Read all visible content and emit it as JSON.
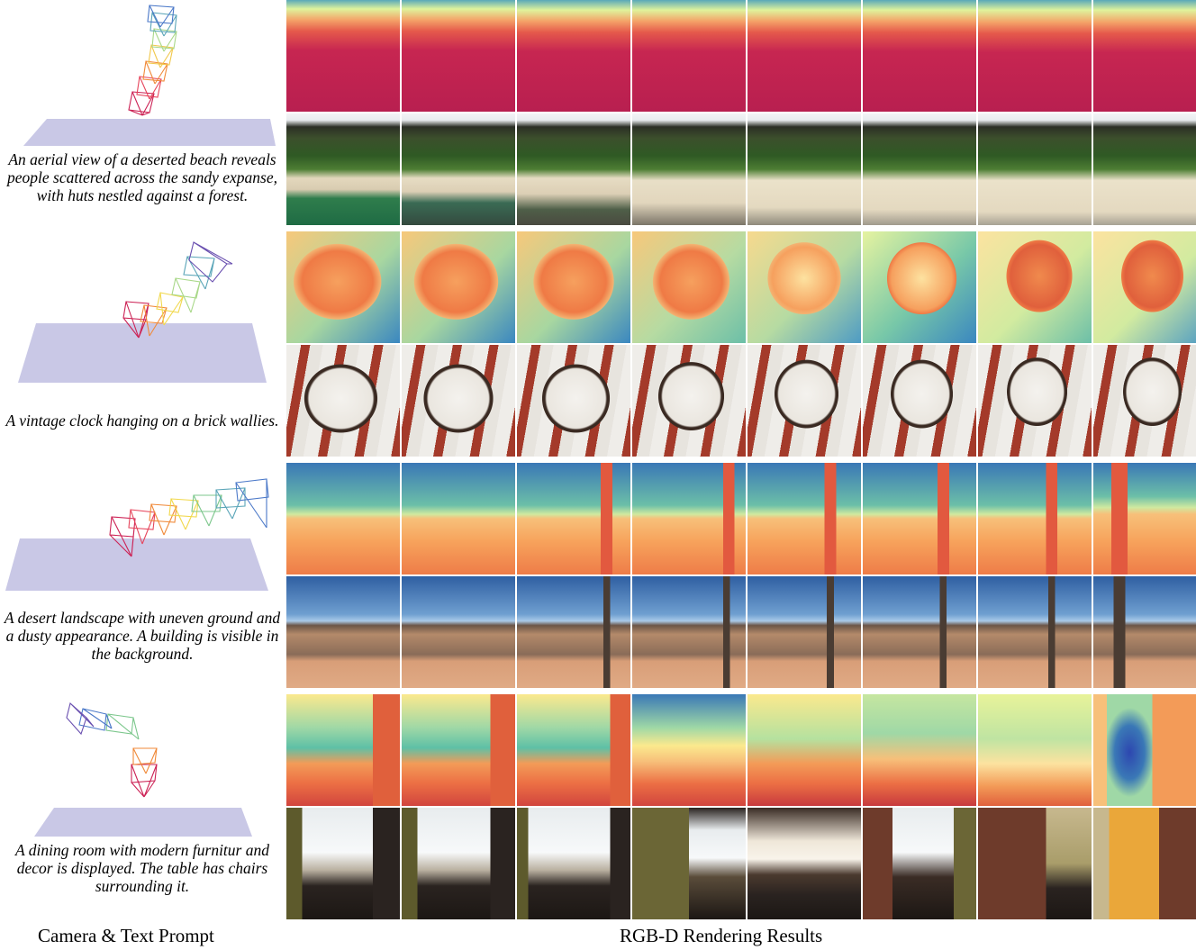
{
  "figure": {
    "rows": [
      {
        "id": "beach",
        "prompt": "An aerial view of a deserted beach reveals people scattered across the sandy expanse, with huts nestled against a forest.",
        "depth_palette": [
          "#e9f59a",
          "#f07a55",
          "#c2254f",
          "#b61e50"
        ],
        "rgb_palette": [
          "#f0f2f5",
          "#2d3a22",
          "#3f6b2a",
          "#e9dfc6"
        ]
      },
      {
        "id": "clock",
        "prompt": "A vintage clock hanging on a brick wallies.",
        "depth_palette": [
          "#3f8fc1",
          "#6cc7a7",
          "#f6b066",
          "#e8623a"
        ],
        "rgb_palette": [
          "#f2f0ed",
          "#a43a2a",
          "#3a2a22",
          "#ffffff"
        ]
      },
      {
        "id": "desert",
        "prompt": "A desert landscape with uneven ground and a dusty appearance. A building is visible in the background.",
        "depth_palette": [
          "#3a78b6",
          "#8fd0a1",
          "#f7a35c",
          "#e86a44"
        ],
        "rgb_palette": [
          "#3a6fb0",
          "#9ec3e6",
          "#6b5548",
          "#d89e78"
        ]
      },
      {
        "id": "dining",
        "prompt": "A dining room with modern furnitur and decor is displayed. The table has chairs surrounding it.",
        "depth_palette": [
          "#fbe98e",
          "#5ec0a6",
          "#f18b4d",
          "#c73a3e"
        ],
        "rgb_palette": [
          "#5d5a2c",
          "#eef2f4",
          "#2a2320",
          "#6e3b2b"
        ]
      }
    ],
    "captions": {
      "left": "Camera & Text Prompt",
      "right": "RGB-D Rendering Results"
    },
    "colors": {
      "ground_plane": "#c9c8e6",
      "camera_path": [
        "#cc2255",
        "#f08a3a",
        "#f1d84c",
        "#7cc78c",
        "#4a78c8",
        "#6a50b0"
      ]
    }
  }
}
